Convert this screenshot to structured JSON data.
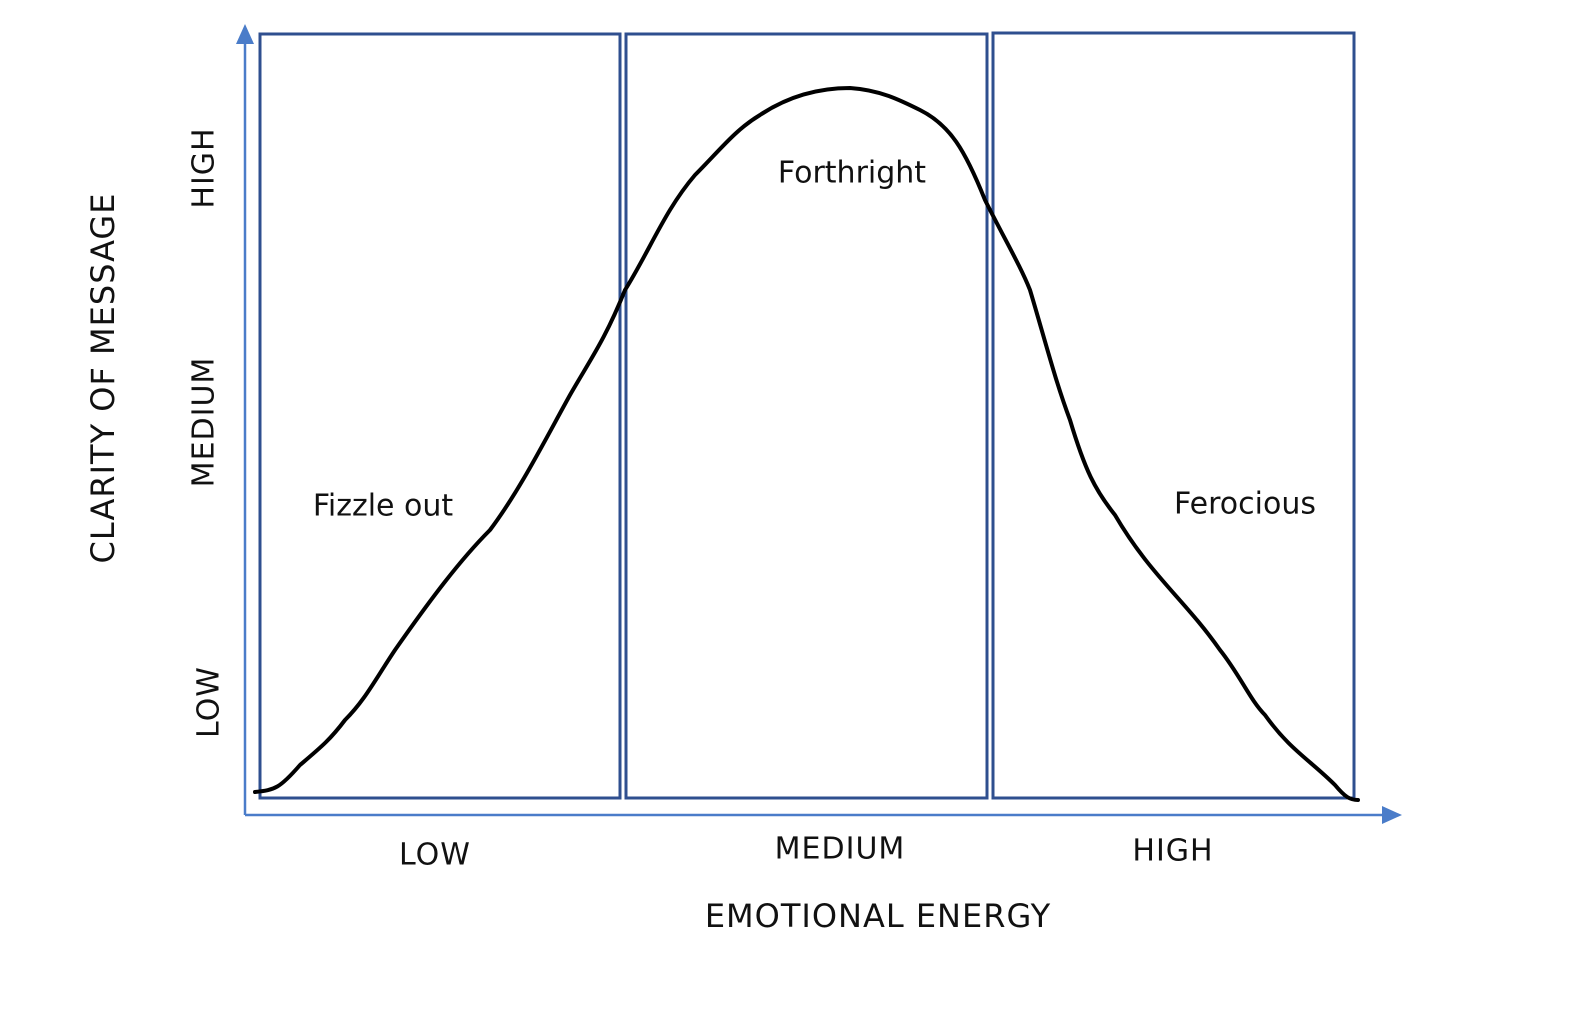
{
  "y_axis": {
    "title": "CLARITY OF MESSAGE",
    "levels": [
      "LOW",
      "MEDIUM",
      "HIGH"
    ]
  },
  "x_axis": {
    "title": "EMOTIONAL ENERGY",
    "levels": [
      "LOW",
      "MEDIUM",
      "HIGH"
    ]
  },
  "zones": [
    "Fizzle out",
    "Forthright",
    "Ferocious"
  ]
}
